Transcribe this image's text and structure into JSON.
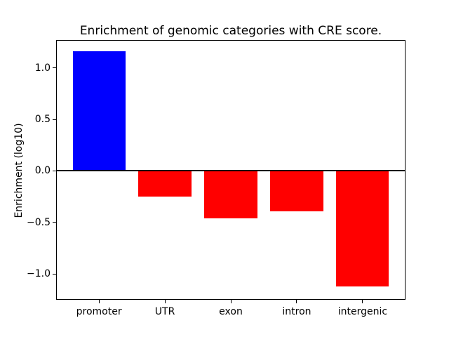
{
  "chart_data": {
    "type": "bar",
    "title": "Enrichment of genomic categories with CRE score.",
    "ylabel": "Enrichment (log10)",
    "xlabel": "",
    "categories": [
      "promoter",
      "UTR",
      "exon",
      "intron",
      "intergenic"
    ],
    "values": [
      1.16,
      -0.25,
      -0.46,
      -0.39,
      -1.12
    ],
    "bar_colors": [
      "#0000ff",
      "#ff0000",
      "#ff0000",
      "#ff0000",
      "#ff0000"
    ],
    "bar_width": 0.8,
    "yticks": [
      {
        "value": 1.0,
        "label": "1.0"
      },
      {
        "value": 0.5,
        "label": "0.5"
      },
      {
        "value": 0.0,
        "label": "0.0"
      },
      {
        "value": -0.5,
        "label": "−0.5"
      },
      {
        "value": -1.0,
        "label": "−1.0"
      }
    ],
    "ylim": [
      -1.245,
      1.265
    ],
    "xlim": [
      -0.64,
      4.64
    ],
    "zero_line": true,
    "grid": false,
    "legend": "none",
    "colors": {
      "positive_bar": "#0000ff",
      "negative_bar": "#ff0000",
      "axis": "#000000",
      "background": "#ffffff"
    }
  }
}
